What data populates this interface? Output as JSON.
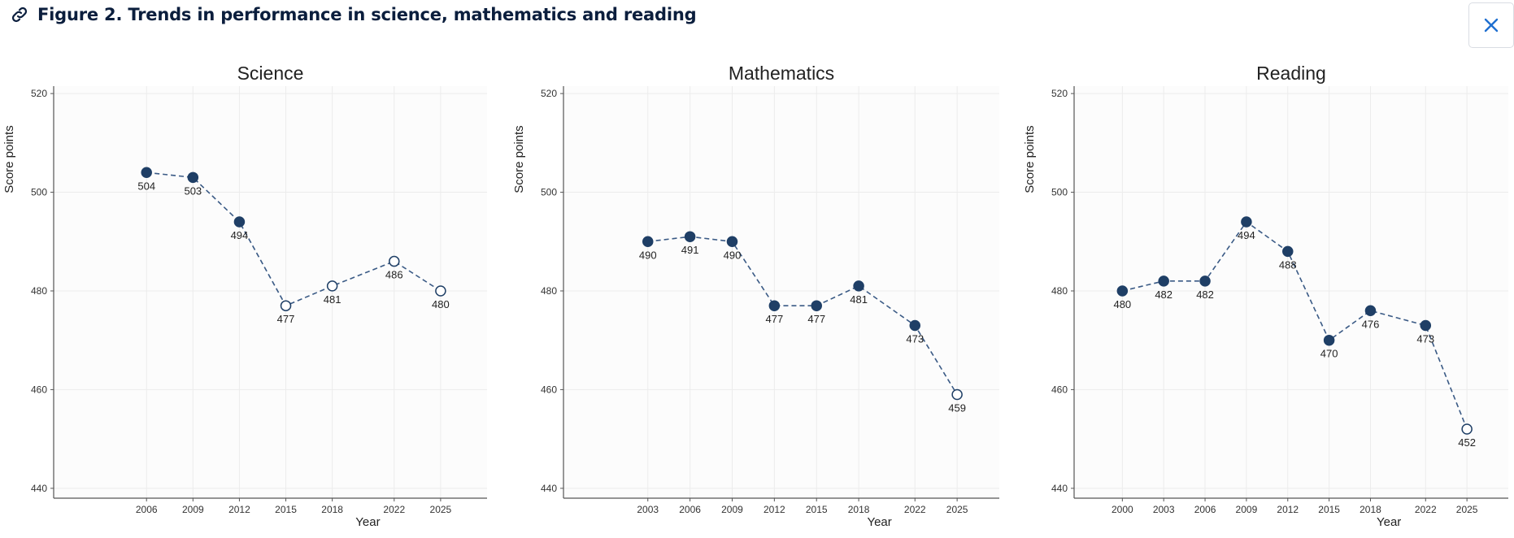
{
  "header": {
    "title": "Figure 2. Trends in performance in science, mathematics and reading",
    "link_icon": "link-icon",
    "close_icon": "close-icon"
  },
  "colors": {
    "series": "#1f3f66",
    "line": "#3a5a85",
    "grid": "#ececec",
    "panel_bg": "#fcfcfc",
    "title": "#0b1e3d",
    "close": "#1f6fd0"
  },
  "chart_data": [
    {
      "type": "line",
      "title": "Science",
      "xlabel": "Year",
      "ylabel": "Score points",
      "ylim": [
        440,
        520
      ],
      "yticks": [
        440,
        460,
        480,
        500,
        520
      ],
      "x": [
        2006,
        2009,
        2012,
        2015,
        2018,
        2022,
        2025
      ],
      "values": [
        504,
        503,
        494,
        477,
        481,
        486,
        480
      ],
      "hollow": [
        false,
        false,
        false,
        true,
        true,
        true,
        true
      ],
      "grid": true
    },
    {
      "type": "line",
      "title": "Mathematics",
      "xlabel": "Year",
      "ylabel": "Score points",
      "ylim": [
        440,
        520
      ],
      "yticks": [
        440,
        460,
        480,
        500,
        520
      ],
      "x": [
        2003,
        2006,
        2009,
        2012,
        2015,
        2018,
        2022,
        2025
      ],
      "values": [
        490,
        491,
        490,
        477,
        477,
        481,
        473,
        459
      ],
      "hollow": [
        false,
        false,
        false,
        false,
        false,
        false,
        false,
        true
      ],
      "grid": true
    },
    {
      "type": "line",
      "title": "Reading",
      "xlabel": "Year",
      "ylabel": "Score points",
      "ylim": [
        440,
        520
      ],
      "yticks": [
        440,
        460,
        480,
        500,
        520
      ],
      "x": [
        2000,
        2003,
        2006,
        2009,
        2012,
        2015,
        2018,
        2022,
        2025
      ],
      "values": [
        480,
        482,
        482,
        494,
        488,
        470,
        476,
        473,
        452
      ],
      "hollow": [
        false,
        false,
        false,
        false,
        false,
        false,
        false,
        false,
        true
      ],
      "grid": true
    }
  ]
}
